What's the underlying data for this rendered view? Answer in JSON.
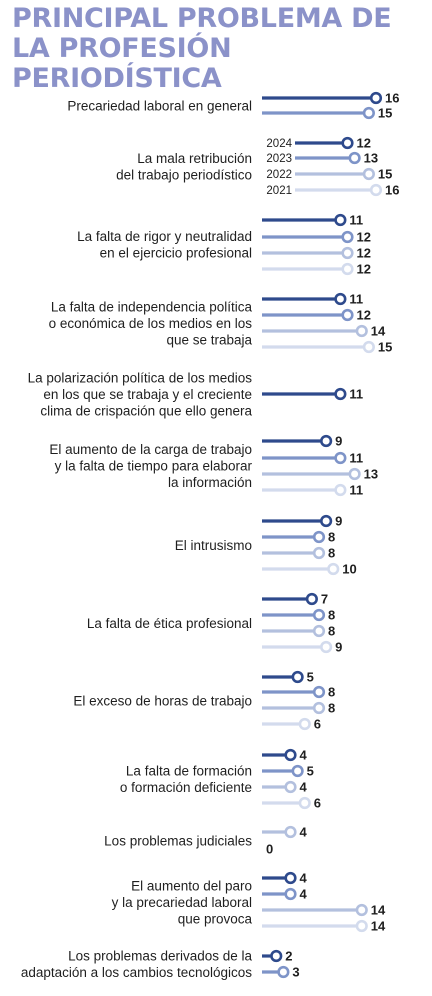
{
  "chart_data": {
    "type": "bar",
    "title": "PRINCIPAL PROBLEMA DE LA PROFESIÓN PERIODÍSTICA",
    "legend": {
      "placement": "inline-left-of-second-group",
      "years": [
        "2024",
        "2023",
        "2022",
        "2021"
      ]
    },
    "series_colors": {
      "2024": "#2e4a8c",
      "2023": "#7e94c8",
      "2022": "#b3c0de",
      "2021": "#d3dbed"
    },
    "xlim": [
      0,
      16
    ],
    "categories": [
      {
        "label": [
          "Precariedad laboral en general"
        ],
        "values": [
          {
            "year": "2024",
            "value": 16
          },
          {
            "year": "2023",
            "value": 15
          }
        ]
      },
      {
        "label": [
          "La mala retribución",
          "del trabajo periodístico"
        ],
        "values": [
          {
            "year": "2024",
            "value": 12
          },
          {
            "year": "2023",
            "value": 13
          },
          {
            "year": "2022",
            "value": 15
          },
          {
            "year": "2021",
            "value": 16
          }
        ]
      },
      {
        "label": [
          "La falta de rigor y neutralidad",
          "en el ejercicio profesional"
        ],
        "values": [
          {
            "year": "2024",
            "value": 11
          },
          {
            "year": "2023",
            "value": 12
          },
          {
            "year": "2022",
            "value": 12
          },
          {
            "year": "2021",
            "value": 12
          }
        ]
      },
      {
        "label": [
          "La falta de independencia política",
          "o económica de los medios en los",
          "que se trabaja"
        ],
        "values": [
          {
            "year": "2024",
            "value": 11
          },
          {
            "year": "2023",
            "value": 12
          },
          {
            "year": "2022",
            "value": 14
          },
          {
            "year": "2021",
            "value": 15
          }
        ]
      },
      {
        "label": [
          "La polarización política de los medios",
          "en los que se trabaja y el creciente",
          "clima de crispación que ello genera"
        ],
        "values": [
          {
            "year": "2024",
            "value": 11
          }
        ]
      },
      {
        "label": [
          "El aumento de la carga de trabajo",
          "y la falta de tiempo para elaborar",
          "la información"
        ],
        "values": [
          {
            "year": "2024",
            "value": 9
          },
          {
            "year": "2023",
            "value": 11
          },
          {
            "year": "2022",
            "value": 13
          },
          {
            "year": "2021",
            "value": 11
          }
        ]
      },
      {
        "label": [
          "El intrusismo"
        ],
        "values": [
          {
            "year": "2024",
            "value": 9
          },
          {
            "year": "2023",
            "value": 8
          },
          {
            "year": "2022",
            "value": 8
          },
          {
            "year": "2021",
            "value": 10
          }
        ]
      },
      {
        "label": [
          "La falta de ética profesional"
        ],
        "values": [
          {
            "year": "2024",
            "value": 7
          },
          {
            "year": "2023",
            "value": 8
          },
          {
            "year": "2022",
            "value": 8
          },
          {
            "year": "2021",
            "value": 9
          }
        ]
      },
      {
        "label": [
          "El exceso de horas de trabajo"
        ],
        "values": [
          {
            "year": "2024",
            "value": 5
          },
          {
            "year": "2023",
            "value": 8
          },
          {
            "year": "2022",
            "value": 8
          },
          {
            "year": "2021",
            "value": 6
          }
        ]
      },
      {
        "label": [
          "La falta de formación",
          "o formación deficiente"
        ],
        "values": [
          {
            "year": "2024",
            "value": 4
          },
          {
            "year": "2023",
            "value": 5
          },
          {
            "year": "2022",
            "value": 4
          },
          {
            "year": "2021",
            "value": 6
          }
        ]
      },
      {
        "label": [
          "Los problemas judiciales"
        ],
        "values": [
          {
            "year": "2022",
            "value": 4
          },
          {
            "year": "2021",
            "value": 0
          }
        ]
      },
      {
        "label": [
          "El aumento del paro",
          "y la precariedad laboral",
          "que provoca"
        ],
        "values": [
          {
            "year": "2024",
            "value": 4
          },
          {
            "year": "2023",
            "value": 4
          },
          {
            "year": "2022",
            "value": 14
          },
          {
            "year": "2021",
            "value": 14
          }
        ]
      },
      {
        "label": [
          "Los problemas derivados de la",
          "adaptación a los cambios tecnológicos"
        ],
        "values": [
          {
            "year": "2024",
            "value": 2
          },
          {
            "year": "2023",
            "value": 3
          }
        ]
      }
    ]
  }
}
